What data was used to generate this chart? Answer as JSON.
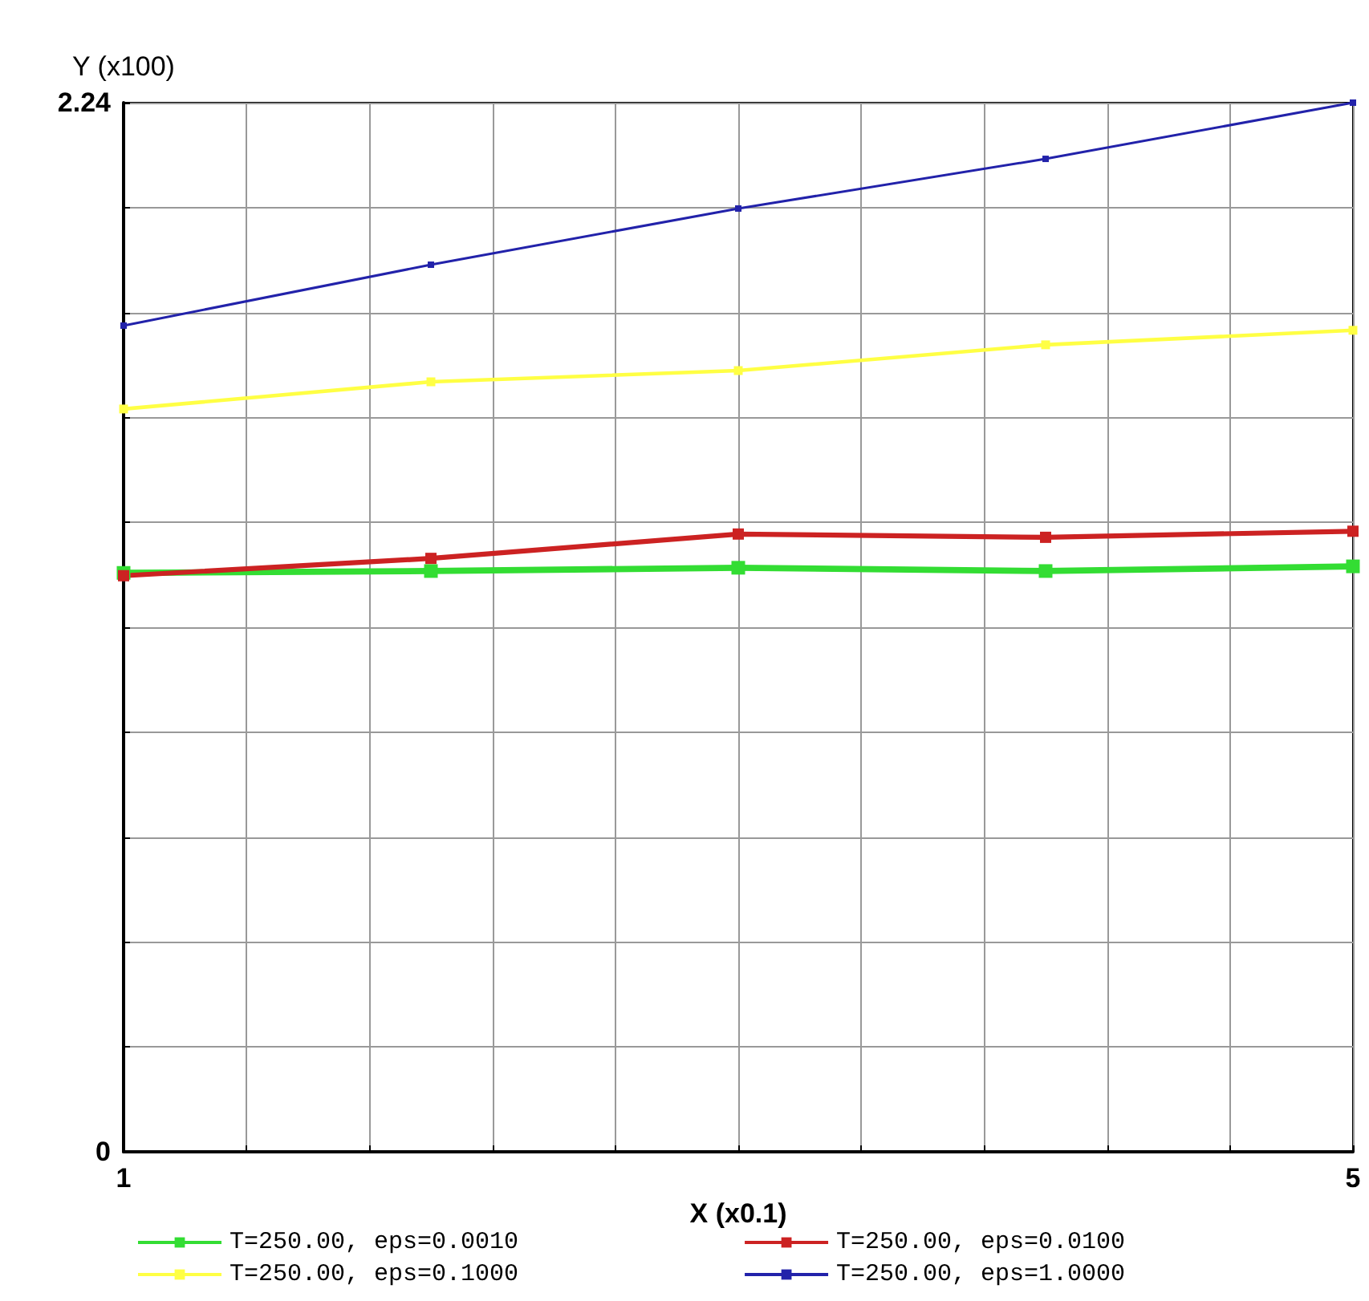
{
  "chart_data": {
    "type": "line",
    "xlabel": "X (x0.1)",
    "ylabel": "Y (x100)",
    "x": [
      1,
      2,
      3,
      4,
      5
    ],
    "xlim": [
      1,
      5
    ],
    "xticks": [
      1,
      {
        "value": 1.4,
        "label": null
      },
      {
        "value": 1.8,
        "label": null
      },
      {
        "value": 2.2,
        "label": null
      },
      {
        "value": 2.6,
        "label": null
      },
      {
        "value": 3,
        "label": null
      },
      {
        "value": 3.4,
        "label": null
      },
      {
        "value": 3.8,
        "label": null
      },
      {
        "value": 4.2,
        "label": null
      },
      {
        "value": 4.6,
        "label": null
      },
      5
    ],
    "ylim": [
      0,
      2.24
    ],
    "yticks": [
      0,
      {
        "value": 0.224,
        "label": null
      },
      {
        "value": 0.448,
        "label": null
      },
      {
        "value": 0.672,
        "label": null
      },
      {
        "value": 0.896,
        "label": null
      },
      {
        "value": 1.12,
        "label": null
      },
      {
        "value": 1.344,
        "label": null
      },
      {
        "value": 1.568,
        "label": null
      },
      {
        "value": 1.792,
        "label": null
      },
      {
        "value": 2.016,
        "label": null
      },
      2.24
    ],
    "grid": true,
    "legend": "bottom",
    "marker": "square",
    "line_style": "solid",
    "series": [
      {
        "name": "T=250.00, eps=0.0010",
        "color": "#33dd33",
        "values": [
          1.236,
          1.24,
          1.247,
          1.24,
          1.25
        ]
      },
      {
        "name": "T=250.00, eps=0.0100",
        "color": "#cc2222",
        "values": [
          1.23,
          1.267,
          1.319,
          1.312,
          1.325
        ]
      },
      {
        "name": "T=250.00, eps=0.1000",
        "color": "#ffff44",
        "values": [
          1.586,
          1.644,
          1.668,
          1.723,
          1.754
        ]
      },
      {
        "name": "T=250.00, eps=1.0000",
        "color": "#2222aa",
        "values": [
          1.764,
          1.894,
          2.014,
          2.12,
          2.24
        ]
      }
    ]
  }
}
